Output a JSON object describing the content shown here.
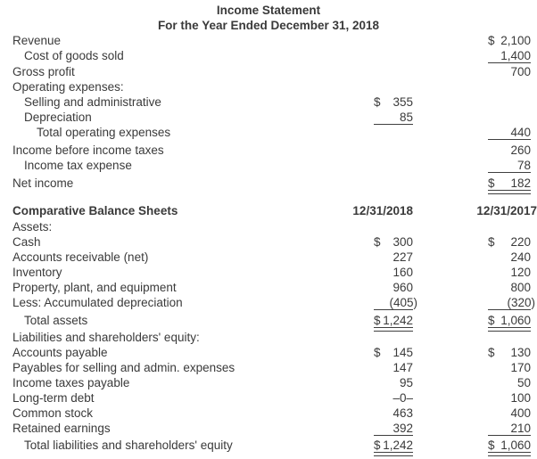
{
  "theme": {
    "background_color": "#ffffff",
    "text_color": "#3a3a3a",
    "rule_color": "#3f3f3f"
  },
  "income_statement": {
    "title": "Income Statement",
    "subtitle": "For the Year Ended December 31, 2018",
    "rows": [
      {
        "label": "Revenue",
        "indent": 0,
        "b": {
          "d": "$",
          "v": "2,100"
        }
      },
      {
        "label": "Cost of goods sold",
        "indent": 1,
        "b": {
          "d": "",
          "v": "1,400",
          "rule": "s"
        }
      },
      {
        "label": "Gross profit",
        "indent": 0,
        "gap": 1,
        "b": {
          "d": "",
          "v": "700"
        }
      },
      {
        "label": "Operating expenses:",
        "indent": 0
      },
      {
        "label": "Selling and administrative",
        "indent": 1,
        "a": {
          "d": "$",
          "v": "355"
        }
      },
      {
        "label": "Depreciation",
        "indent": 1,
        "a": {
          "d": "",
          "v": "85",
          "rule": "s"
        }
      },
      {
        "label": "Total operating expenses",
        "indent": 2,
        "b": {
          "d": "",
          "v": "440",
          "rule": "s"
        }
      },
      {
        "label": "Income before income taxes",
        "indent": 0,
        "gap": 3,
        "b": {
          "d": "",
          "v": "260"
        }
      },
      {
        "label": "Income tax expense",
        "indent": 1,
        "b": {
          "d": "",
          "v": "78",
          "rule": "s"
        }
      },
      {
        "label": "Net income",
        "indent": 0,
        "gap": 3,
        "b": {
          "d": "$",
          "v": "182",
          "rule": "d"
        }
      }
    ]
  },
  "balance_sheet": {
    "header": {
      "label": "Comparative Balance Sheets",
      "col_a": "12/31/2018",
      "col_b": "12/31/2017"
    },
    "rows": [
      {
        "label": "Assets:",
        "indent": 0,
        "gap": 1
      },
      {
        "label": "Cash",
        "indent": 0,
        "a": {
          "d": "$",
          "v": "300"
        },
        "b": {
          "d": "$",
          "v": "220"
        }
      },
      {
        "label": "Accounts receivable (net)",
        "indent": 0,
        "a": {
          "d": "",
          "v": "227"
        },
        "b": {
          "d": "",
          "v": "240"
        }
      },
      {
        "label": "Inventory",
        "indent": 0,
        "a": {
          "d": "",
          "v": "160"
        },
        "b": {
          "d": "",
          "v": "120"
        }
      },
      {
        "label": "Property, plant, and equipment",
        "indent": 0,
        "a": {
          "d": "",
          "v": "960"
        },
        "b": {
          "d": "",
          "v": "800"
        }
      },
      {
        "label": "Less: Accumulated depreciation",
        "indent": 0,
        "a": {
          "d": "",
          "v": "(405)",
          "neg": true,
          "rule": "s"
        },
        "b": {
          "d": "",
          "v": "(320)",
          "neg": true,
          "rule": "s"
        }
      },
      {
        "label": "Total assets",
        "indent": 1,
        "gap": 3,
        "a": {
          "d": "$",
          "v": "1,242",
          "rule": "d"
        },
        "b": {
          "d": "$",
          "v": "1,060",
          "rule": "d"
        }
      },
      {
        "label": "Liabilities and shareholders' equity:",
        "indent": 0,
        "gap": 2
      },
      {
        "label": "Accounts payable",
        "indent": 0,
        "a": {
          "d": "$",
          "v": "145"
        },
        "b": {
          "d": "$",
          "v": "130"
        }
      },
      {
        "label": "Payables for selling and admin. expenses",
        "indent": 0,
        "a": {
          "d": "",
          "v": "147"
        },
        "b": {
          "d": "",
          "v": "170"
        }
      },
      {
        "label": "Income taxes payable",
        "indent": 0,
        "a": {
          "d": "",
          "v": "95"
        },
        "b": {
          "d": "",
          "v": "50"
        }
      },
      {
        "label": "Long-term debt",
        "indent": 0,
        "a": {
          "d": "",
          "v": "–0–"
        },
        "b": {
          "d": "",
          "v": "100"
        }
      },
      {
        "label": "Common stock",
        "indent": 0,
        "a": {
          "d": "",
          "v": "463"
        },
        "b": {
          "d": "",
          "v": "400"
        }
      },
      {
        "label": "Retained earnings",
        "indent": 0,
        "a": {
          "d": "",
          "v": "392",
          "rule": "s"
        },
        "b": {
          "d": "",
          "v": "210",
          "rule": "s"
        }
      },
      {
        "label": "Total liabilities and shareholders' equity",
        "indent": 1,
        "gap": 2,
        "a": {
          "d": "$",
          "v": "1,242",
          "rule": "d"
        },
        "b": {
          "d": "$",
          "v": "1,060",
          "rule": "d"
        }
      }
    ]
  }
}
